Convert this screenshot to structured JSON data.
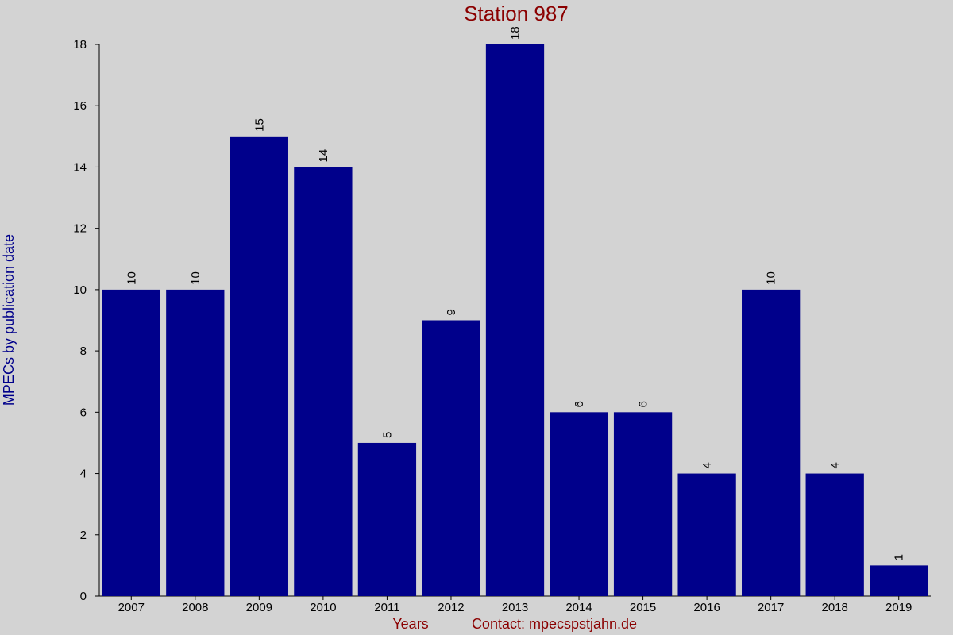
{
  "chart_data": {
    "type": "bar",
    "title": "Station 987",
    "xlabel": "Years",
    "ylabel": "MPECs by publication date",
    "contact": "Contact: mpecspstjahn.de",
    "categories": [
      "2007",
      "2008",
      "2009",
      "2010",
      "2011",
      "2012",
      "2013",
      "2014",
      "2015",
      "2016",
      "2017",
      "2018",
      "2019"
    ],
    "values": [
      10,
      10,
      15,
      14,
      5,
      9,
      18,
      6,
      6,
      4,
      10,
      4,
      1
    ],
    "ylim": [
      0,
      18
    ],
    "yticks": [
      0,
      2,
      4,
      6,
      8,
      10,
      12,
      14,
      16,
      18
    ],
    "grid": false,
    "legend": "none",
    "colors": {
      "background": "#d3d3d3",
      "bar": "#00008b",
      "title": "#8b0000",
      "ylabel": "#00008b",
      "xlabel": "#8b0000"
    }
  }
}
